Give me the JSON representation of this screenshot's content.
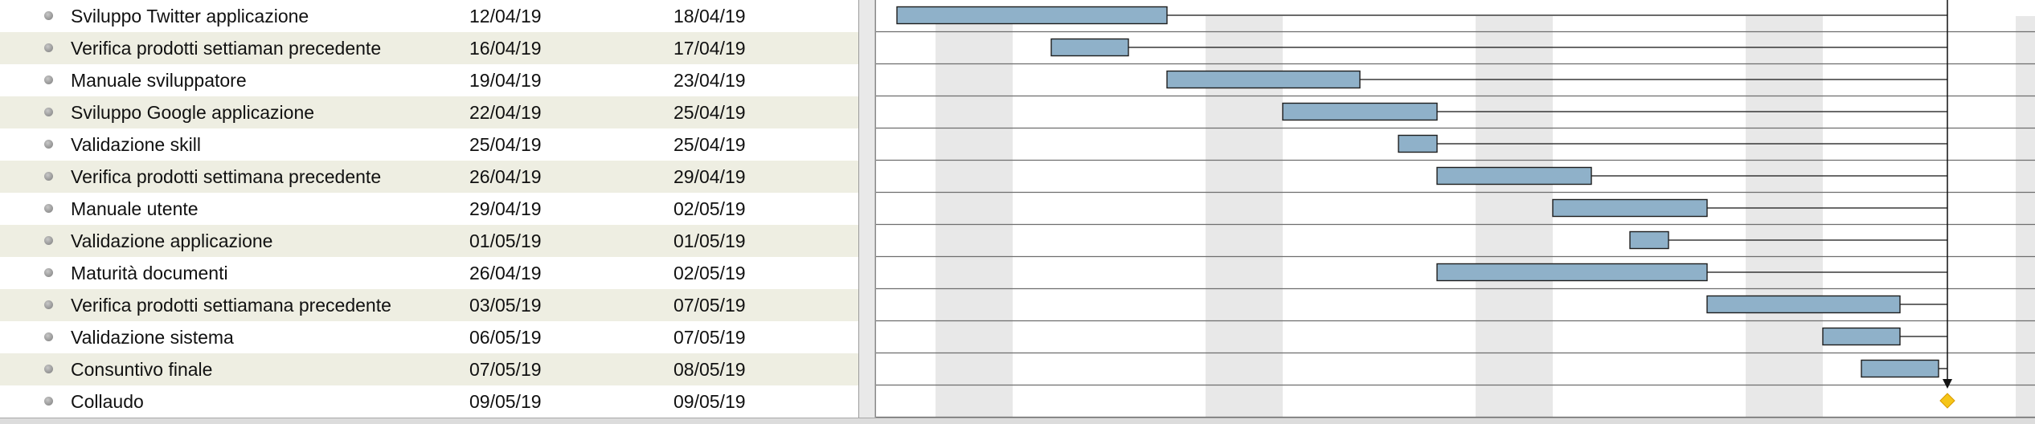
{
  "tasks": [
    {
      "name": "Sviluppo Twitter applicazione",
      "start": "12/04/19",
      "end": "18/04/19",
      "day_start": 0,
      "day_end": 7
    },
    {
      "name": "Verifica prodotti settiaman precedente",
      "start": "16/04/19",
      "end": "17/04/19",
      "day_start": 4,
      "day_end": 6
    },
    {
      "name": "Manuale sviluppatore",
      "start": "19/04/19",
      "end": "23/04/19",
      "day_start": 7,
      "day_end": 12
    },
    {
      "name": "Sviluppo Google applicazione",
      "start": "22/04/19",
      "end": "25/04/19",
      "day_start": 10,
      "day_end": 14
    },
    {
      "name": "Validazione skill",
      "start": "25/04/19",
      "end": "25/04/19",
      "day_start": 13,
      "day_end": 14
    },
    {
      "name": "Verifica prodotti settimana precedente",
      "start": "26/04/19",
      "end": "29/04/19",
      "day_start": 14,
      "day_end": 18
    },
    {
      "name": "Manuale utente",
      "start": "29/04/19",
      "end": "02/05/19",
      "day_start": 17,
      "day_end": 21
    },
    {
      "name": "Validazione applicazione",
      "start": "01/05/19",
      "end": "01/05/19",
      "day_start": 19,
      "day_end": 20
    },
    {
      "name": "Maturità documenti",
      "start": "26/04/19",
      "end": "02/05/19",
      "day_start": 14,
      "day_end": 21
    },
    {
      "name": "Verifica prodotti settiamana precedente",
      "start": "03/05/19",
      "end": "07/05/19",
      "day_start": 21,
      "day_end": 26
    },
    {
      "name": "Validazione sistema",
      "start": "06/05/19",
      "end": "07/05/19",
      "day_start": 24,
      "day_end": 26
    },
    {
      "name": "Consuntivo finale",
      "start": "07/05/19",
      "end": "08/05/19",
      "day_start": 25,
      "day_end": 27
    },
    {
      "name": "Collaudo",
      "start": "09/05/19",
      "end": "09/05/19",
      "day_start": 27,
      "day_end": 27,
      "milestone": true
    }
  ],
  "weekend_day_offsets": [
    1,
    2,
    8,
    9,
    15,
    16,
    22,
    23,
    29
  ],
  "colors": {
    "bar_fill": "#8fb1c9",
    "bar_stroke": "#1e1e1e",
    "row_alt": "#eeeee2",
    "weekend": "#e8e8e8",
    "milestone": "#f5c518",
    "gridline": "#6e6e6e"
  }
}
